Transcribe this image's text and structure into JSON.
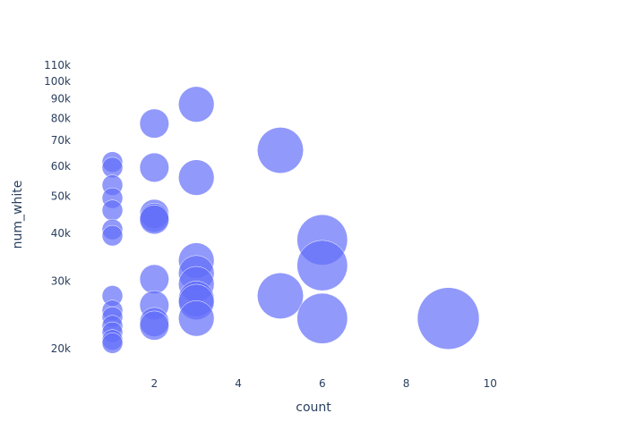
{
  "colors": {
    "background": "#ffffff",
    "plot_background": "#ffffff",
    "marker_fill": "#636efa",
    "marker_line": "#ffffff",
    "text": "#2a3f5f"
  },
  "chart_data": {
    "type": "scatter",
    "xlabel": "count",
    "ylabel": "num_white",
    "xlim": [
      0.03,
      11.55
    ],
    "ylim": [
      17500,
      118000
    ],
    "y_scale": "log",
    "grid": false,
    "legend": "none",
    "marker_size_reference": "bubble area proportional to count",
    "x_ticks": [
      2,
      4,
      6,
      8,
      10
    ],
    "x_tick_labels": [
      "2",
      "4",
      "6",
      "8",
      "10"
    ],
    "y_ticks": [
      20000,
      30000,
      40000,
      50000,
      60000,
      70000,
      80000,
      90000,
      100000,
      110000
    ],
    "y_tick_labels": [
      "20k",
      "30k",
      "40k",
      "50k",
      "60k",
      "70k",
      "80k",
      "90k",
      "100k",
      "110k"
    ],
    "points": [
      {
        "x": 1,
        "y": 61500
      },
      {
        "x": 1,
        "y": 59500
      },
      {
        "x": 1,
        "y": 53500
      },
      {
        "x": 1,
        "y": 49500
      },
      {
        "x": 1,
        "y": 46000
      },
      {
        "x": 1,
        "y": 41000
      },
      {
        "x": 1,
        "y": 39500
      },
      {
        "x": 1,
        "y": 27500
      },
      {
        "x": 1,
        "y": 25200
      },
      {
        "x": 1,
        "y": 24200
      },
      {
        "x": 1,
        "y": 23000
      },
      {
        "x": 1,
        "y": 22100
      },
      {
        "x": 1,
        "y": 21100
      },
      {
        "x": 1,
        "y": 20700
      },
      {
        "x": 2,
        "y": 77500
      },
      {
        "x": 2,
        "y": 59500
      },
      {
        "x": 2,
        "y": 45000
      },
      {
        "x": 2,
        "y": 44000
      },
      {
        "x": 2,
        "y": 43500
      },
      {
        "x": 2,
        "y": 30400
      },
      {
        "x": 2,
        "y": 26000
      },
      {
        "x": 2,
        "y": 23500
      },
      {
        "x": 2,
        "y": 23000
      },
      {
        "x": 3,
        "y": 87000
      },
      {
        "x": 3,
        "y": 56000
      },
      {
        "x": 3,
        "y": 34000
      },
      {
        "x": 3,
        "y": 31500
      },
      {
        "x": 3,
        "y": 29500
      },
      {
        "x": 3,
        "y": 27000
      },
      {
        "x": 3,
        "y": 26500
      },
      {
        "x": 3,
        "y": 24000
      },
      {
        "x": 5,
        "y": 66000
      },
      {
        "x": 5,
        "y": 27500
      },
      {
        "x": 6,
        "y": 38500
      },
      {
        "x": 6,
        "y": 33000
      },
      {
        "x": 6,
        "y": 24000
      },
      {
        "x": 9,
        "y": 24000
      }
    ]
  }
}
